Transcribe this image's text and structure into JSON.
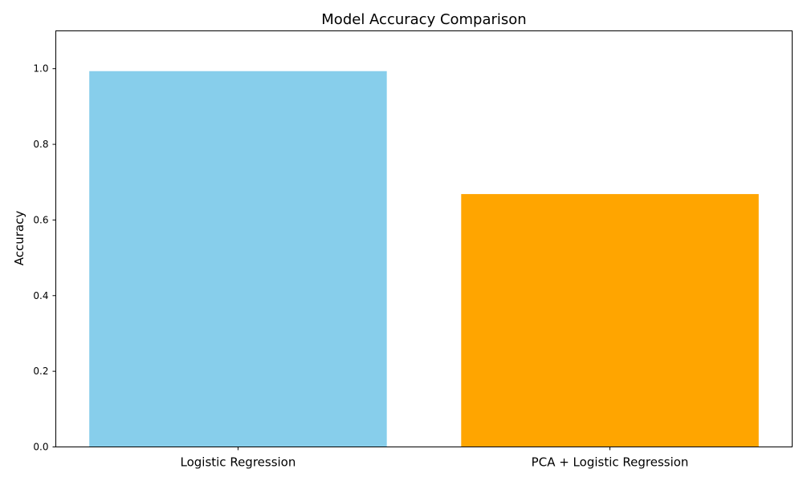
{
  "chart_data": {
    "type": "bar",
    "title": "Model Accuracy Comparison",
    "xlabel": "",
    "ylabel": "Accuracy",
    "categories": [
      "Logistic Regression",
      "PCA + Logistic Regression"
    ],
    "values": [
      0.9935,
      0.6685
    ],
    "colors": [
      "#87CEEB",
      "#FFA500"
    ],
    "ylim": [
      0,
      1.1
    ],
    "yticks": [
      0.0,
      0.2,
      0.4,
      0.6,
      0.8,
      1.0
    ],
    "ytick_labels": [
      "0.0",
      "0.2",
      "0.4",
      "0.6",
      "0.8",
      "1.0"
    ],
    "grid": false,
    "legend": "none"
  }
}
